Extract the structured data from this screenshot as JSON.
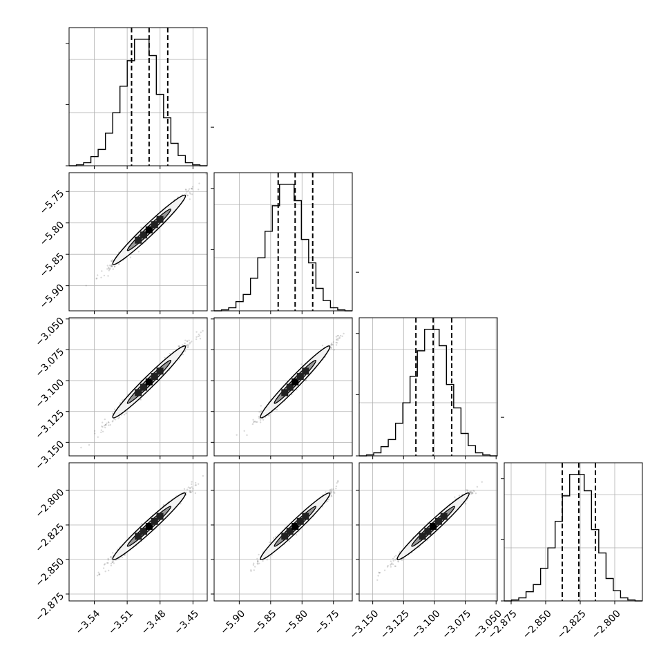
{
  "chart_data": {
    "type": "corner",
    "grid": true,
    "parameters": [
      {
        "ticks": [
          -3.54,
          -3.51,
          -3.48,
          -3.45
        ],
        "tick_labels": [
          "−3.54",
          "−3.51",
          "−3.48",
          "−3.45"
        ],
        "range": [
          -3.563,
          -3.437
        ],
        "quantiles": [
          -3.506,
          -3.49,
          -3.473
        ],
        "histogram": [
          0,
          1,
          3,
          9,
          16,
          32,
          52,
          78,
          103,
          124,
          124,
          108,
          70,
          47,
          22,
          10,
          3,
          1,
          0
        ]
      },
      {
        "ticks": [
          -5.9,
          -5.85,
          -5.8,
          -5.75
        ],
        "tick_labels": [
          "−5.90",
          "−5.85",
          "−5.80",
          "−5.75"
        ],
        "range": [
          -5.94,
          -5.72
        ],
        "quantiles": [
          -5.838,
          -5.811,
          -5.783
        ],
        "histogram": [
          0,
          1,
          3,
          9,
          16,
          32,
          52,
          78,
          103,
          124,
          124,
          108,
          70,
          47,
          22,
          10,
          3,
          1,
          0
        ]
      },
      {
        "ticks": [
          -3.15,
          -3.125,
          -3.1,
          -3.075,
          -3.05
        ],
        "tick_labels": [
          "−3.150",
          "−3.125",
          "−3.100",
          "−3.075",
          "−3.050"
        ],
        "range": [
          -3.161,
          -3.049
        ],
        "quantiles": [
          -3.115,
          -3.101,
          -3.086
        ],
        "histogram": [
          0,
          1,
          3,
          9,
          16,
          32,
          52,
          78,
          103,
          124,
          124,
          108,
          70,
          47,
          22,
          10,
          3,
          1,
          0
        ]
      },
      {
        "ticks": [
          -2.875,
          -2.85,
          -2.825,
          -2.8
        ],
        "tick_labels": [
          "−2.875",
          "−2.850",
          "−2.825",
          "−2.800"
        ],
        "range": [
          -2.88,
          -2.78
        ],
        "quantiles": [
          -2.838,
          -2.826,
          -2.814
        ],
        "histogram": [
          0,
          1,
          3,
          9,
          16,
          32,
          52,
          78,
          103,
          124,
          124,
          108,
          70,
          47,
          22,
          10,
          3,
          1,
          0
        ]
      }
    ]
  }
}
